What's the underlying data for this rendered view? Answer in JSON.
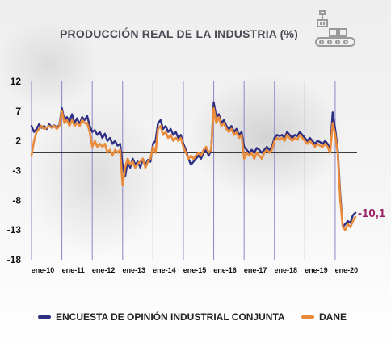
{
  "colors": {
    "encuesta": "#2e2f82",
    "dane": "#e98b3a",
    "annotation": "#9b2064",
    "grid": "#8a86c8",
    "axis": "#222222"
  },
  "icon": "factory-conveyor-icon",
  "chart_data": {
    "type": "line",
    "title": "PRODUCCIÓN REAL DE LA INDUSTRIA (%)",
    "xlabel": "",
    "ylabel": "",
    "ylim": [
      -18,
      12
    ],
    "yticks": [
      "12",
      "7",
      "2",
      "-3",
      "-8",
      "-13",
      "-18"
    ],
    "ytick_values": [
      12,
      7,
      2,
      -3,
      -8,
      -13,
      -18
    ],
    "xticks": [
      "ene-10",
      "ene-11",
      "ene-12",
      "ene-13",
      "ene-14",
      "ene-15",
      "ene-16",
      "ene-17",
      "ene-18",
      "ene-19",
      "ene-20"
    ],
    "x_start": "ene-10",
    "x_end": "jul-20",
    "grid": "vertical",
    "legend_position": "bottom",
    "annotation": "-10,1",
    "series": [
      {
        "name": "ENCUESTA DE OPINIÓN INDUSTRIAL CONJUNTA",
        "values": [
          4.5,
          3.5,
          4.0,
          4.8,
          4.2,
          4.5,
          4.0,
          4.8,
          4.3,
          4.6,
          4.2,
          4.7,
          7.5,
          5.5,
          6.0,
          5.2,
          6.5,
          5.0,
          5.8,
          4.8,
          6.0,
          5.5,
          6.2,
          4.5,
          3.5,
          3.8,
          3.0,
          3.5,
          2.5,
          3.2,
          2.0,
          2.5,
          1.5,
          2.0,
          1.2,
          1.5,
          -2.0,
          -4.0,
          -1.5,
          -2.5,
          -1.0,
          -2.0,
          -1.5,
          -2.5,
          -1.0,
          -2.0,
          -1.2,
          -1.5,
          1.5,
          2.0,
          5.0,
          5.5,
          4.0,
          4.5,
          3.5,
          4.0,
          3.0,
          3.5,
          2.5,
          3.0,
          1.5,
          0.5,
          -1.0,
          -2.0,
          -1.5,
          -1.0,
          -0.5,
          -1.0,
          0.0,
          0.5,
          -0.5,
          0.5,
          8.5,
          6.0,
          6.5,
          5.0,
          5.5,
          4.5,
          4.0,
          4.5,
          3.5,
          4.0,
          3.0,
          3.5,
          1.0,
          0.5,
          0.0,
          0.5,
          0.0,
          0.8,
          0.5,
          0.0,
          0.5,
          1.0,
          0.5,
          1.0,
          2.5,
          3.0,
          2.8,
          3.0,
          2.5,
          3.5,
          3.0,
          2.5,
          3.0,
          2.8,
          3.5,
          3.0,
          2.5,
          2.0,
          2.5,
          2.0,
          1.5,
          2.0,
          1.8,
          1.5,
          2.0,
          1.5,
          0.5,
          6.8,
          4.0,
          0.5,
          -7.0,
          -12.5,
          -12.0,
          -11.5,
          -11.8,
          -10.5,
          -10.1
        ],
        "color": "#2e2f82"
      },
      {
        "name": "DANE",
        "values": [
          -0.5,
          2.0,
          3.5,
          4.0,
          4.5,
          4.0,
          4.2,
          4.5,
          4.2,
          4.5,
          4.0,
          4.5,
          7.0,
          5.0,
          5.5,
          4.5,
          5.5,
          4.5,
          5.0,
          4.5,
          5.5,
          5.0,
          5.0,
          3.5,
          1.0,
          2.0,
          1.0,
          1.5,
          1.0,
          1.5,
          0.0,
          0.5,
          -0.5,
          0.5,
          0.0,
          0.5,
          -5.5,
          -2.5,
          -1.0,
          -2.0,
          -1.5,
          -2.5,
          -1.8,
          -1.5,
          -1.0,
          -2.5,
          -1.5,
          -1.0,
          1.0,
          0.0,
          4.0,
          4.5,
          3.0,
          3.5,
          2.5,
          3.0,
          2.0,
          2.5,
          2.0,
          2.5,
          1.0,
          0.0,
          -1.0,
          -0.5,
          -1.0,
          -0.5,
          0.0,
          -0.5,
          0.5,
          1.0,
          0.0,
          0.5,
          7.5,
          5.0,
          6.0,
          4.5,
          5.0,
          4.0,
          3.5,
          4.0,
          3.0,
          3.5,
          2.5,
          3.0,
          -1.0,
          0.0,
          -0.5,
          0.0,
          -1.0,
          0.0,
          -0.5,
          -1.0,
          0.0,
          0.5,
          0.0,
          0.5,
          2.0,
          2.5,
          2.2,
          2.5,
          2.0,
          3.0,
          2.5,
          2.0,
          2.5,
          2.2,
          3.0,
          2.5,
          2.0,
          1.5,
          2.0,
          1.5,
          1.0,
          1.5,
          1.2,
          1.0,
          1.5,
          1.0,
          0.0,
          5.0,
          3.0,
          0.0,
          -8.0,
          -12.5,
          -13.0,
          -12.0,
          -12.5,
          -11.5,
          -10.8
        ],
        "color": "#e98b3a"
      }
    ]
  }
}
